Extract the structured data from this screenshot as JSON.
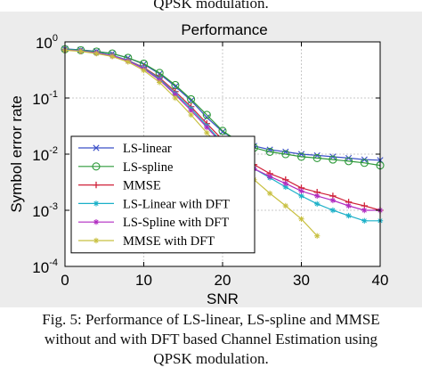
{
  "captions": {
    "top_fragment": "QPSK modulation.",
    "bottom_lines": [
      "Fig. 5: Performance of LS-linear, LS-spline and MMSE",
      "without and with DFT based Channel Estimation using",
      "QPSK modulation."
    ]
  },
  "chart_data": {
    "type": "line",
    "title": "Performance",
    "xlabel": "SNR",
    "ylabel": "Symbol error rate",
    "xlim": [
      0,
      40
    ],
    "ylim": [
      0.0001,
      1
    ],
    "yscale": "log",
    "grid": true,
    "legend_position": "middle-left",
    "x_ticks": [
      {
        "value": 0,
        "label": "0"
      },
      {
        "value": 10,
        "label": "10"
      },
      {
        "value": 20,
        "label": "20"
      },
      {
        "value": 30,
        "label": "30"
      },
      {
        "value": 40,
        "label": "40"
      }
    ],
    "y_ticks": [
      {
        "value": 1,
        "base": "10",
        "exp": "0"
      },
      {
        "value": 0.1,
        "base": "10",
        "exp": "-1"
      },
      {
        "value": 0.01,
        "base": "10",
        "exp": "-2"
      },
      {
        "value": 0.001,
        "base": "10",
        "exp": "-3"
      },
      {
        "value": 0.0001,
        "base": "10",
        "exp": "-4"
      }
    ],
    "series": [
      {
        "name": "LS-linear",
        "color": "#3a4fc8",
        "marker": "x",
        "x": [
          0,
          2,
          4,
          6,
          8,
          10,
          12,
          14,
          16,
          18,
          20,
          22,
          24,
          26,
          28,
          30,
          32,
          34,
          36,
          38,
          40
        ],
        "y": [
          0.75,
          0.72,
          0.68,
          0.62,
          0.52,
          0.4,
          0.27,
          0.16,
          0.09,
          0.045,
          0.025,
          0.017,
          0.014,
          0.012,
          0.011,
          0.01,
          0.0095,
          0.009,
          0.0085,
          0.008,
          0.0078
        ]
      },
      {
        "name": "LS-spline",
        "color": "#2e9a3a",
        "marker": "o",
        "x": [
          0,
          2,
          4,
          6,
          8,
          10,
          12,
          14,
          16,
          18,
          20,
          22,
          24,
          26,
          28,
          30,
          32,
          34,
          36,
          38,
          40
        ],
        "y": [
          0.74,
          0.71,
          0.67,
          0.62,
          0.52,
          0.41,
          0.28,
          0.17,
          0.095,
          0.05,
          0.026,
          0.017,
          0.013,
          0.011,
          0.01,
          0.009,
          0.0085,
          0.008,
          0.0075,
          0.007,
          0.0063
        ]
      },
      {
        "name": "MMSE",
        "color": "#d0223a",
        "marker": "+",
        "x": [
          0,
          2,
          4,
          6,
          8,
          10,
          12,
          14,
          16,
          18,
          20,
          22,
          24,
          26,
          28,
          30,
          32,
          34,
          36,
          38,
          40
        ],
        "y": [
          0.72,
          0.69,
          0.64,
          0.57,
          0.47,
          0.35,
          0.23,
          0.13,
          0.07,
          0.035,
          0.018,
          0.01,
          0.0065,
          0.0045,
          0.0035,
          0.0025,
          0.0021,
          0.0018,
          0.0014,
          0.0012,
          0.001
        ]
      },
      {
        "name": "LS-Linear with DFT",
        "color": "#1ab0c8",
        "marker": "*",
        "x": [
          0,
          2,
          4,
          6,
          8,
          10,
          12,
          14,
          16,
          18,
          20,
          22,
          24,
          26,
          28,
          30,
          32,
          34,
          36,
          38,
          40
        ],
        "y": [
          0.73,
          0.7,
          0.65,
          0.58,
          0.47,
          0.34,
          0.22,
          0.12,
          0.065,
          0.032,
          0.016,
          0.009,
          0.0055,
          0.0038,
          0.0026,
          0.0018,
          0.0013,
          0.001,
          0.0008,
          0.00065,
          0.00065
        ]
      },
      {
        "name": "LS-Spline with DFT",
        "color": "#b02ac0",
        "marker": "*",
        "x": [
          0,
          2,
          4,
          6,
          8,
          10,
          12,
          14,
          16,
          18,
          20,
          22,
          24,
          26,
          28,
          30,
          32,
          34,
          36,
          38,
          40
        ],
        "y": [
          0.72,
          0.69,
          0.64,
          0.57,
          0.46,
          0.33,
          0.21,
          0.115,
          0.06,
          0.03,
          0.015,
          0.0085,
          0.0055,
          0.004,
          0.003,
          0.0022,
          0.0018,
          0.0015,
          0.0012,
          0.001,
          0.001
        ]
      },
      {
        "name": "MMSE with DFT",
        "color": "#c8c040",
        "marker": "*",
        "x": [
          0,
          2,
          4,
          6,
          8,
          10,
          12,
          14,
          16,
          18,
          20,
          22,
          24,
          26,
          28,
          30,
          32
        ],
        "y": [
          0.71,
          0.68,
          0.62,
          0.55,
          0.44,
          0.31,
          0.19,
          0.1,
          0.05,
          0.024,
          0.012,
          0.006,
          0.0035,
          0.002,
          0.0012,
          0.0007,
          0.00035
        ]
      }
    ]
  }
}
